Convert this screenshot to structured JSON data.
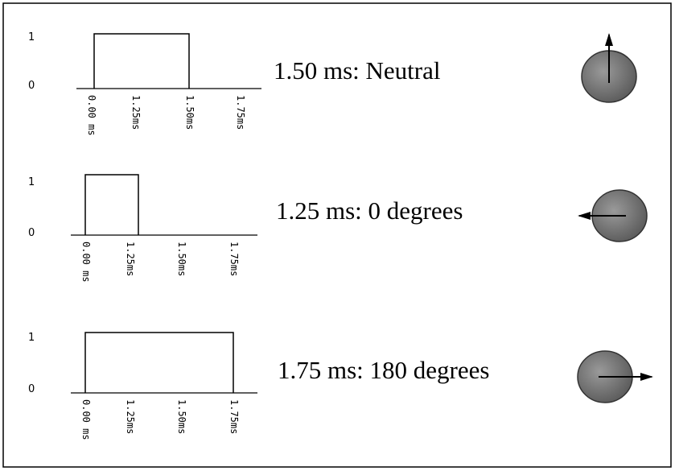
{
  "panels": [
    {
      "y_labels": [
        "1",
        "0"
      ],
      "x_labels": [
        "0.00 ms",
        "1.25ms",
        "1.50ms",
        "1.75ms"
      ],
      "caption": "1.50 ms: Neutral"
    },
    {
      "y_labels": [
        "1",
        "0"
      ],
      "x_labels": [
        "0.00 ms",
        "1.25ms",
        "1.50ms",
        "1.75ms"
      ],
      "caption": "1.25 ms: 0 degrees"
    },
    {
      "y_labels": [
        "1",
        "0"
      ],
      "x_labels": [
        "0.00 ms",
        "1.25ms",
        "1.50ms",
        "1.75ms"
      ],
      "caption": "1.75 ms: 180 degrees"
    }
  ]
}
